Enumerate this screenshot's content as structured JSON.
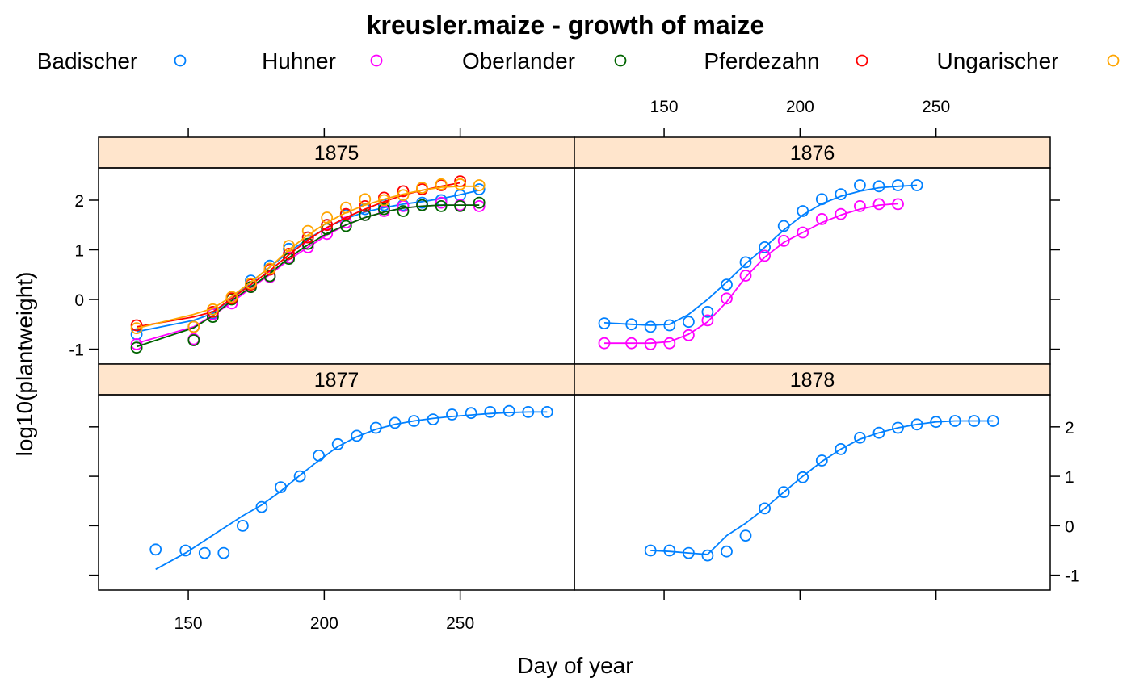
{
  "chart_data": {
    "type": "scatter",
    "title": "kreusler.maize - growth of maize",
    "xlabel": "Day of year",
    "ylabel": "log10(plantweight)",
    "xlim": [
      117,
      292
    ],
    "ylim": [
      -1.3,
      2.65
    ],
    "x_ticks": [
      "150",
      "200",
      "250"
    ],
    "y_ticks": [
      "-1",
      "0",
      "1",
      "2"
    ],
    "legend_position": "top",
    "strip_color": "#ffe5cc",
    "legend": [
      {
        "name": "Badischer",
        "color": "#0080ff"
      },
      {
        "name": "Huhner",
        "color": "#ff00ff"
      },
      {
        "name": "Oberlander",
        "color": "#006400"
      },
      {
        "name": "Pferdezahn",
        "color": "#ff0000"
      },
      {
        "name": "Ungarischer",
        "color": "#ffa500"
      }
    ],
    "panels": [
      {
        "label": "1875",
        "series": [
          {
            "name": "Badischer",
            "color": "#0080ff",
            "x": [
              131,
              152,
              159,
              166,
              173,
              180,
              187,
              194,
              201,
              208,
              215,
              222,
              229,
              236,
              243,
              250,
              257
            ],
            "y": [
              -0.7,
              -0.55,
              -0.28,
              0.02,
              0.38,
              0.68,
              1.02,
              1.25,
              1.5,
              1.7,
              1.82,
              1.9,
              1.9,
              1.95,
              2.0,
              2.1,
              2.22
            ],
            "fit": [
              -0.65,
              -0.42,
              -0.28,
              0.02,
              0.35,
              0.65,
              0.96,
              1.22,
              1.45,
              1.63,
              1.76,
              1.85,
              1.92,
              1.97,
              2.03,
              2.11,
              2.2
            ]
          },
          {
            "name": "Huhner",
            "color": "#ff00ff",
            "x": [
              131,
              152,
              159,
              166,
              173,
              180,
              187,
              194,
              201,
              208,
              215,
              222,
              229,
              236,
              243,
              250,
              257
            ],
            "y": [
              -0.9,
              -0.8,
              -0.3,
              -0.08,
              0.25,
              0.45,
              0.85,
              1.05,
              1.32,
              1.55,
              1.7,
              1.78,
              1.88,
              1.9,
              1.95,
              1.9,
              1.88
            ],
            "fit": [
              -0.88,
              -0.55,
              -0.32,
              -0.06,
              0.23,
              0.5,
              0.8,
              1.05,
              1.3,
              1.5,
              1.65,
              1.76,
              1.84,
              1.88,
              1.9,
              1.9,
              1.9
            ]
          },
          {
            "name": "Oberlander",
            "color": "#006400",
            "x": [
              131,
              152,
              159,
              166,
              173,
              180,
              187,
              194,
              201,
              208,
              215,
              222,
              229,
              236,
              243,
              250,
              257
            ],
            "y": [
              -0.97,
              -0.82,
              -0.35,
              0.0,
              0.25,
              0.47,
              0.82,
              1.12,
              1.42,
              1.48,
              1.7,
              1.82,
              1.78,
              1.9,
              1.88,
              1.88,
              1.95
            ],
            "fit": [
              -0.95,
              -0.57,
              -0.33,
              -0.02,
              0.25,
              0.52,
              0.84,
              1.1,
              1.33,
              1.5,
              1.65,
              1.76,
              1.84,
              1.88,
              1.9,
              1.9,
              1.9
            ]
          },
          {
            "name": "Pferdezahn",
            "color": "#ff0000",
            "x": [
              131,
              152,
              159,
              166,
              173,
              180,
              187,
              194,
              201,
              208,
              215,
              222,
              229,
              236,
              243,
              250
            ],
            "y": [
              -0.52,
              -0.55,
              -0.25,
              0.02,
              0.3,
              0.6,
              0.92,
              1.25,
              1.5,
              1.72,
              1.88,
              2.05,
              2.18,
              2.22,
              2.3,
              2.38
            ],
            "fit": [
              -0.55,
              -0.35,
              -0.25,
              0.02,
              0.3,
              0.58,
              0.9,
              1.2,
              1.45,
              1.65,
              1.82,
              1.97,
              2.1,
              2.2,
              2.28,
              2.35
            ]
          },
          {
            "name": "Ungarischer",
            "color": "#ffa500",
            "x": [
              131,
              152,
              159,
              166,
              173,
              180,
              187,
              194,
              201,
              208,
              215,
              222,
              229,
              236,
              243,
              250,
              257
            ],
            "y": [
              -0.58,
              -0.55,
              -0.2,
              0.05,
              0.32,
              0.62,
              1.08,
              1.38,
              1.65,
              1.85,
              2.02,
              2.0,
              2.1,
              2.25,
              2.32,
              2.32,
              2.3
            ],
            "fit": [
              -0.58,
              -0.3,
              -0.18,
              0.06,
              0.35,
              0.65,
              1.0,
              1.3,
              1.55,
              1.75,
              1.9,
              2.02,
              2.12,
              2.2,
              2.26,
              2.28,
              2.28
            ]
          }
        ]
      },
      {
        "label": "1876",
        "series": [
          {
            "name": "Badischer",
            "color": "#0080ff",
            "x": [
              128,
              138,
              145,
              152,
              159,
              166,
              173,
              180,
              187,
              194,
              201,
              208,
              215,
              222,
              229,
              236,
              243
            ],
            "y": [
              -0.48,
              -0.5,
              -0.55,
              -0.52,
              -0.45,
              -0.25,
              0.3,
              0.75,
              1.05,
              1.48,
              1.78,
              2.02,
              2.12,
              2.3,
              2.28,
              2.3,
              2.3
            ],
            "fit": [
              -0.47,
              -0.5,
              -0.52,
              -0.5,
              -0.3,
              0.0,
              0.35,
              0.72,
              1.05,
              1.4,
              1.7,
              1.93,
              2.08,
              2.18,
              2.25,
              2.28,
              2.3
            ]
          },
          {
            "name": "Huhner",
            "color": "#ff00ff",
            "x": [
              128,
              138,
              145,
              152,
              159,
              166,
              173,
              180,
              187,
              194,
              201,
              208,
              215,
              222,
              229,
              236
            ],
            "y": [
              -0.88,
              -0.88,
              -0.9,
              -0.88,
              -0.72,
              -0.42,
              0.02,
              0.48,
              0.88,
              1.18,
              1.35,
              1.62,
              1.72,
              1.88,
              1.92,
              1.92
            ],
            "fit": [
              -0.88,
              -0.88,
              -0.88,
              -0.85,
              -0.7,
              -0.45,
              -0.05,
              0.45,
              0.85,
              1.15,
              1.35,
              1.55,
              1.7,
              1.82,
              1.9,
              1.93
            ]
          }
        ]
      },
      {
        "label": "1877",
        "series": [
          {
            "name": "Badischer",
            "color": "#0080ff",
            "x": [
              138,
              149,
              156,
              163,
              170,
              177,
              184,
              191,
              198,
              205,
              212,
              219,
              226,
              233,
              240,
              247,
              254,
              261,
              268,
              275,
              282
            ],
            "y": [
              -0.48,
              -0.5,
              -0.55,
              -0.55,
              0.0,
              0.38,
              0.78,
              1.0,
              1.42,
              1.65,
              1.82,
              1.98,
              2.08,
              2.12,
              2.15,
              2.25,
              2.28,
              2.3,
              2.32,
              2.3,
              2.3
            ],
            "fit": [
              -0.88,
              -0.55,
              -0.3,
              -0.05,
              0.2,
              0.42,
              0.7,
              1.02,
              1.32,
              1.6,
              1.8,
              1.95,
              2.05,
              2.12,
              2.17,
              2.21,
              2.24,
              2.27,
              2.29,
              2.3,
              2.3
            ]
          }
        ]
      },
      {
        "label": "1878",
        "series": [
          {
            "name": "Badischer",
            "color": "#0080ff",
            "x": [
              145,
              152,
              159,
              166,
              173,
              180,
              187,
              194,
              201,
              208,
              215,
              222,
              229,
              236,
              243,
              250,
              257,
              264,
              271
            ],
            "y": [
              -0.5,
              -0.5,
              -0.55,
              -0.6,
              -0.52,
              -0.2,
              0.35,
              0.68,
              0.98,
              1.32,
              1.55,
              1.78,
              1.88,
              1.98,
              2.05,
              2.1,
              2.12,
              2.12,
              2.12
            ],
            "fit": [
              -0.5,
              -0.52,
              -0.55,
              -0.58,
              -0.2,
              0.05,
              0.35,
              0.68,
              1.0,
              1.3,
              1.55,
              1.75,
              1.88,
              1.98,
              2.05,
              2.1,
              2.12,
              2.12,
              2.12
            ]
          }
        ]
      }
    ]
  }
}
